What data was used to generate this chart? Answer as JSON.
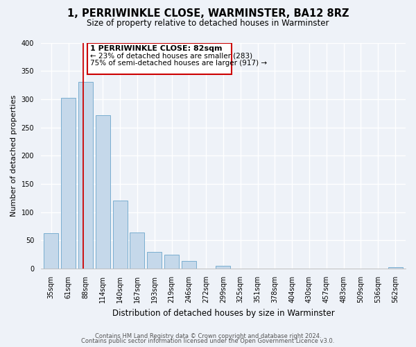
{
  "title": "1, PERRIWINKLE CLOSE, WARMINSTER, BA12 8RZ",
  "subtitle": "Size of property relative to detached houses in Warminster",
  "xlabel": "Distribution of detached houses by size in Warminster",
  "ylabel": "Number of detached properties",
  "categories": [
    "35sqm",
    "61sqm",
    "88sqm",
    "114sqm",
    "140sqm",
    "167sqm",
    "193sqm",
    "219sqm",
    "246sqm",
    "272sqm",
    "299sqm",
    "325sqm",
    "351sqm",
    "378sqm",
    "404sqm",
    "430sqm",
    "457sqm",
    "483sqm",
    "509sqm",
    "536sqm",
    "562sqm"
  ],
  "values": [
    63,
    302,
    330,
    271,
    120,
    64,
    29,
    24,
    13,
    0,
    5,
    0,
    0,
    0,
    0,
    0,
    0,
    0,
    0,
    0,
    3
  ],
  "bar_color": "#c5d8ea",
  "bar_edge_color": "#7aaed0",
  "property_line_label": "1 PERRIWINKLE CLOSE: 82sqm",
  "annotation_line1": "← 23% of detached houses are smaller (283)",
  "annotation_line2": "75% of semi-detached houses are larger (917) →",
  "annotation_box_color": "#ffffff",
  "annotation_box_edge": "#cc0000",
  "vline_color": "#cc0000",
  "ylim": [
    0,
    400
  ],
  "footer1": "Contains HM Land Registry data © Crown copyright and database right 2024.",
  "footer2": "Contains public sector information licensed under the Open Government Licence v3.0.",
  "background_color": "#eef2f8",
  "grid_color": "#d0d8e8",
  "title_fontsize": 10.5,
  "subtitle_fontsize": 8.5,
  "ylabel_fontsize": 8,
  "xlabel_fontsize": 8.5,
  "tick_fontsize": 7,
  "footer_fontsize": 6,
  "annot_title_fontsize": 8,
  "annot_text_fontsize": 7.5
}
